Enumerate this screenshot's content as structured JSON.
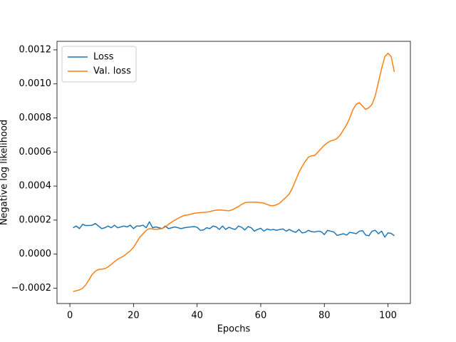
{
  "chart_data": {
    "type": "line",
    "xlabel": "Epochs",
    "ylabel": "Negative log likelihood",
    "x": [
      1,
      2,
      3,
      4,
      5,
      6,
      7,
      8,
      9,
      10,
      11,
      12,
      13,
      14,
      15,
      16,
      17,
      18,
      19,
      20,
      21,
      22,
      23,
      24,
      25,
      26,
      27,
      28,
      29,
      30,
      31,
      32,
      33,
      34,
      35,
      36,
      37,
      38,
      39,
      40,
      41,
      42,
      43,
      44,
      45,
      46,
      47,
      48,
      49,
      50,
      51,
      52,
      53,
      54,
      55,
      56,
      57,
      58,
      59,
      60,
      61,
      62,
      63,
      64,
      65,
      66,
      67,
      68,
      69,
      70,
      71,
      72,
      73,
      74,
      75,
      76,
      77,
      78,
      79,
      80,
      81,
      82,
      83,
      84,
      85,
      86,
      87,
      88,
      89,
      90,
      91,
      92,
      93,
      94,
      95,
      96,
      97,
      98,
      99,
      100,
      101,
      102
    ],
    "series": [
      {
        "name": "Loss",
        "color": "#1f77b4",
        "values": [
          0.000155,
          0.000165,
          0.00015,
          0.000175,
          0.000168,
          0.000168,
          0.00017,
          0.00018,
          0.000165,
          0.00015,
          0.000155,
          0.000165,
          0.000155,
          0.00017,
          0.000155,
          0.00016,
          0.000165,
          0.00016,
          0.00017,
          0.00015,
          0.000165,
          0.000165,
          0.00017,
          0.000155,
          0.00019,
          0.000155,
          0.00016,
          0.000155,
          0.00015,
          0.000165,
          0.00015,
          0.000155,
          0.00016,
          0.000155,
          0.00015,
          0.000155,
          0.000158,
          0.00016,
          0.000162,
          0.000158,
          0.00014,
          0.000142,
          0.000155,
          0.00015,
          0.000165,
          0.00016,
          0.000145,
          0.000165,
          0.000145,
          0.000158,
          0.00015,
          0.000145,
          0.000165,
          0.000158,
          0.000142,
          0.000162,
          0.000155,
          0.000135,
          0.000145,
          0.000152,
          0.000135,
          0.000148,
          0.000142,
          0.000145,
          0.00014,
          0.000145,
          0.000148,
          0.000135,
          0.000145,
          0.000135,
          0.000128,
          0.000145,
          0.000125,
          0.000128,
          0.00014,
          0.000132,
          0.00013,
          0.000135,
          0.000132,
          0.000115,
          0.00014,
          0.000135,
          0.00013,
          0.00011,
          0.000115,
          0.00012,
          0.000112,
          0.000128,
          0.000125,
          0.00012,
          0.000135,
          0.000138,
          0.000112,
          0.000108,
          0.000135,
          0.00014,
          0.00012,
          0.000135,
          0.0001,
          0.000125,
          0.000122,
          0.000108
        ]
      },
      {
        "name": "Val. loss",
        "color": "#ff7f0e",
        "values": [
          -0.00022,
          -0.000215,
          -0.00021,
          -0.0002,
          -0.00018,
          -0.00015,
          -0.00012,
          -0.0001,
          -9e-05,
          -8.8e-05,
          -8.5e-05,
          -7.5e-05,
          -6e-05,
          -4.5e-05,
          -3e-05,
          -2e-05,
          -1e-05,
          5e-06,
          2e-05,
          4e-05,
          7e-05,
          0.0001,
          0.00012,
          0.00014,
          0.00015,
          0.000148,
          0.000145,
          0.000148,
          0.00015,
          0.00016,
          0.000175,
          0.000188,
          0.0002,
          0.00021,
          0.00022,
          0.000228,
          0.00023,
          0.000235,
          0.00024,
          0.000242,
          0.000244,
          0.000245,
          0.000247,
          0.00025,
          0.000255,
          0.000258,
          0.00026,
          0.000258,
          0.000256,
          0.000255,
          0.00026,
          0.00027,
          0.00028,
          0.000292,
          0.000302,
          0.000305,
          0.000305,
          0.000306,
          0.000305,
          0.000302,
          0.0003,
          0.000292,
          0.000285,
          0.000285,
          0.00029,
          0.0003,
          0.000318,
          0.000335,
          0.000355,
          0.00039,
          0.000435,
          0.00048,
          0.000515,
          0.000545,
          0.00057,
          0.000578,
          0.00058,
          0.0006,
          0.00062,
          0.00064,
          0.000655,
          0.000665,
          0.00067,
          0.00068,
          0.0007,
          0.00073,
          0.00076,
          0.0008,
          0.00085,
          0.00088,
          0.00089,
          0.00087,
          0.00085,
          0.00086,
          0.00088,
          0.00093,
          0.00101,
          0.00109,
          0.00116,
          0.00118,
          0.00116,
          0.00107
        ]
      }
    ],
    "xlim": [
      -4.05,
      107.05
    ],
    "xticks": [
      0,
      20,
      40,
      60,
      80,
      100
    ],
    "ylim": [
      -0.00029,
      0.00125
    ],
    "yticks": [
      {
        "value": -0.0002,
        "label": "−0.0002"
      },
      {
        "value": 0,
        "label": "0.0000"
      },
      {
        "value": 0.0002,
        "label": "0.0002"
      },
      {
        "value": 0.0004,
        "label": "0.0004"
      },
      {
        "value": 0.0006,
        "label": "0.0006"
      },
      {
        "value": 0.0008,
        "label": "0.0008"
      },
      {
        "value": 0.001,
        "label": "0.0010"
      },
      {
        "value": 0.0012,
        "label": "0.0012"
      }
    ],
    "legend": "upper left"
  }
}
